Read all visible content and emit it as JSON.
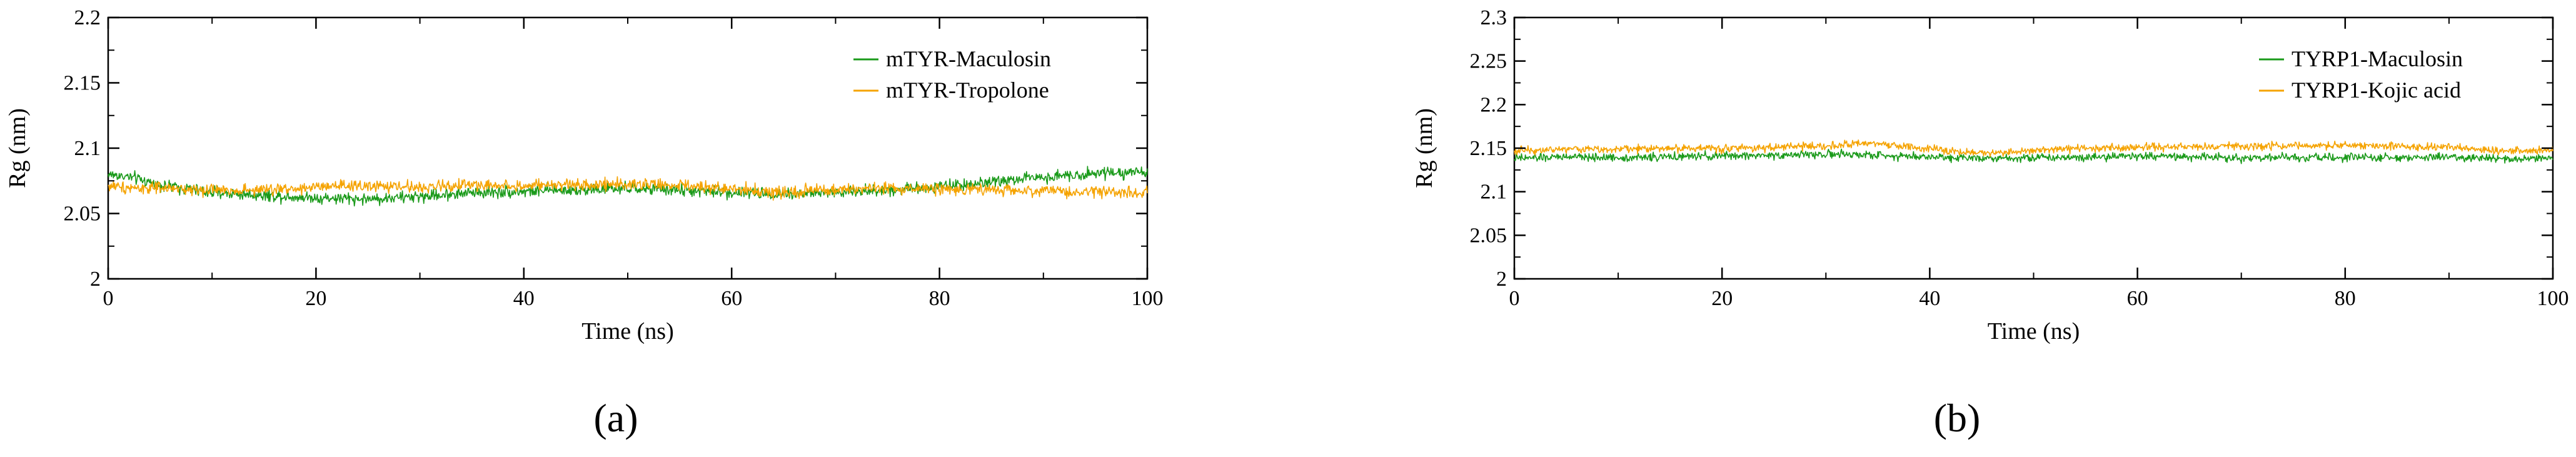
{
  "chart_data": [
    {
      "type": "line",
      "panel_label": "(a)",
      "xlabel": "Time (ns)",
      "ylabel": "Rg (nm)",
      "xlim": [
        0,
        100
      ],
      "ylim": [
        2,
        2.2
      ],
      "xticks": [
        "0",
        "20",
        "40",
        "60",
        "80",
        "100"
      ],
      "yticks": [
        "2",
        "2.05",
        "2.1",
        "2.15",
        "2.2"
      ],
      "legend_position": "top-right",
      "grid": false,
      "series": [
        {
          "name": "mTYR-Maculosin",
          "color": "#1a9a1a",
          "x": [
            0,
            2,
            5,
            10,
            15,
            20,
            25,
            30,
            35,
            40,
            45,
            50,
            55,
            60,
            65,
            70,
            75,
            80,
            85,
            90,
            95,
            100
          ],
          "y": [
            2.08,
            2.078,
            2.072,
            2.066,
            2.064,
            2.062,
            2.061,
            2.063,
            2.066,
            2.067,
            2.068,
            2.069,
            2.068,
            2.066,
            2.065,
            2.066,
            2.068,
            2.071,
            2.074,
            2.078,
            2.081,
            2.082
          ]
        },
        {
          "name": "mTYR-Tropolone",
          "color": "#f5a300",
          "x": [
            0,
            2,
            5,
            10,
            15,
            20,
            25,
            30,
            35,
            40,
            45,
            50,
            55,
            60,
            65,
            70,
            75,
            80,
            85,
            90,
            95,
            100
          ],
          "y": [
            2.071,
            2.07,
            2.069,
            2.068,
            2.068,
            2.07,
            2.071,
            2.07,
            2.072,
            2.071,
            2.072,
            2.073,
            2.071,
            2.069,
            2.066,
            2.068,
            2.069,
            2.069,
            2.068,
            2.067,
            2.067,
            2.066
          ]
        }
      ]
    },
    {
      "type": "line",
      "panel_label": "(b)",
      "xlabel": "Time (ns)",
      "ylabel": "Rg (nm)",
      "xlim": [
        0,
        100
      ],
      "ylim": [
        2,
        2.3
      ],
      "xticks": [
        "0",
        "20",
        "40",
        "60",
        "80",
        "100"
      ],
      "yticks": [
        "2",
        "2.05",
        "2.1",
        "2.15",
        "2.2",
        "2.25",
        "2.3"
      ],
      "legend_position": "top-right",
      "grid": false,
      "series": [
        {
          "name": "TYRP1-Maculosin",
          "color": "#1a9a1a",
          "x": [
            0,
            2,
            5,
            10,
            15,
            20,
            25,
            30,
            35,
            40,
            45,
            50,
            55,
            60,
            65,
            70,
            75,
            80,
            85,
            90,
            95,
            100
          ],
          "y": [
            2.138,
            2.139,
            2.14,
            2.139,
            2.14,
            2.141,
            2.142,
            2.143,
            2.142,
            2.14,
            2.139,
            2.139,
            2.14,
            2.141,
            2.14,
            2.139,
            2.139,
            2.139,
            2.139,
            2.14,
            2.137,
            2.139
          ]
        },
        {
          "name": "TYRP1-Kojic acid",
          "color": "#f5a300",
          "x": [
            0,
            2,
            5,
            10,
            15,
            20,
            25,
            30,
            35,
            40,
            45,
            50,
            55,
            60,
            65,
            70,
            75,
            80,
            85,
            90,
            95,
            100
          ],
          "y": [
            2.147,
            2.148,
            2.149,
            2.149,
            2.15,
            2.15,
            2.151,
            2.153,
            2.155,
            2.149,
            2.144,
            2.148,
            2.15,
            2.151,
            2.152,
            2.152,
            2.153,
            2.153,
            2.152,
            2.151,
            2.147,
            2.148
          ]
        }
      ]
    }
  ]
}
